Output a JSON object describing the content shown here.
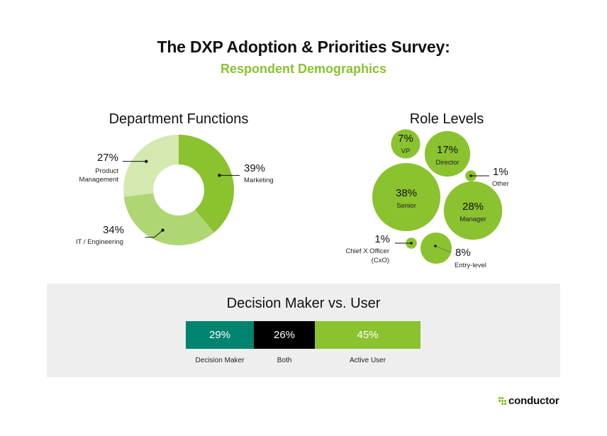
{
  "header": {
    "title": "The DXP Adoption & Priorities Survey:",
    "subtitle": "Respondent Demographics"
  },
  "colors": {
    "brand_green": "#8bc22f",
    "teal": "#00836f",
    "black": "#000000",
    "panel_bg": "#eeeeee"
  },
  "chart_data": [
    {
      "type": "pie",
      "variant": "donut",
      "title": "Department Functions",
      "categories": [
        "Marketing",
        "IT / Engineering",
        "Product Management"
      ],
      "values": [
        39,
        34,
        27
      ],
      "labels": [
        "39%",
        "34%",
        "27%"
      ],
      "label_names": [
        "Marketing",
        "IT / Engineering",
        "Product Management"
      ],
      "colors": [
        "#8bc22f",
        "#afd674",
        "#d3e9b0"
      ]
    },
    {
      "type": "scatter",
      "variant": "bubble",
      "title": "Role Levels",
      "categories": [
        "VP",
        "Director",
        "Other",
        "Senior",
        "Manager",
        "Chief X Officer (CxO)",
        "Entry-level"
      ],
      "values": [
        7,
        17,
        1,
        38,
        28,
        1,
        8
      ],
      "labels": [
        "7%",
        "17%",
        "1%",
        "38%",
        "28%",
        "1%",
        "8%"
      ],
      "color": "#8bc22f"
    },
    {
      "type": "bar",
      "variant": "stacked-100",
      "title": "Decision Maker vs. User",
      "categories": [
        "Decision Maker",
        "Both",
        "Active User"
      ],
      "values": [
        29,
        26,
        45
      ],
      "labels": [
        "29%",
        "26%",
        "45%"
      ],
      "colors": [
        "#00836f",
        "#000000",
        "#8bc22f"
      ]
    }
  ],
  "footer": {
    "logo_text": "conductor"
  }
}
